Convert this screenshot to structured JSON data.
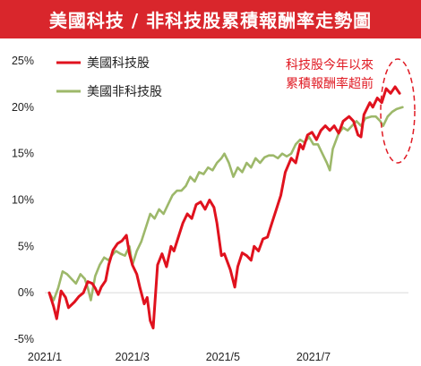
{
  "title": "美國科技 / 非科技股累積報酬率走勢圖",
  "colors": {
    "title_bg": "#d9262c",
    "tech": "#e0121e",
    "nontech": "#9db86a",
    "annotation": "#e01b24"
  },
  "chart_data": {
    "type": "line",
    "title": "美國科技 / 非科技股累積報酬率走勢圖",
    "xlabel": "",
    "ylabel": "",
    "x_range": [
      "2021-01-01",
      "2021-09-03"
    ],
    "ylim": [
      -5,
      25
    ],
    "y_ticks": [
      -5,
      0,
      5,
      10,
      15,
      20,
      25
    ],
    "y_tick_labels": [
      "-5%",
      "0%",
      "5%",
      "10%",
      "15%",
      "20%",
      "25%"
    ],
    "x_ticks": [
      "2021-01-01",
      "2021-03-01",
      "2021-05-01",
      "2021-07-01"
    ],
    "x_tick_labels": [
      "2021/1",
      "2021/3",
      "2021/5",
      "2021/7"
    ],
    "grid": false,
    "legend_position": "top-left",
    "annotation": [
      "科技股今年以來",
      "累積報酬率超前"
    ],
    "series": [
      {
        "name": "美國科技股",
        "color": "#e0121e",
        "points": [
          [
            "2021-01-04",
            0.0
          ],
          [
            "2021-01-07",
            -1.5
          ],
          [
            "2021-01-09",
            -2.8
          ],
          [
            "2021-01-12",
            0.2
          ],
          [
            "2021-01-15",
            -0.5
          ],
          [
            "2021-01-17",
            -1.6
          ],
          [
            "2021-01-21",
            -1.0
          ],
          [
            "2021-01-24",
            -0.4
          ],
          [
            "2021-01-27",
            0.0
          ],
          [
            "2021-01-30",
            1.2
          ],
          [
            "2021-02-02",
            1.0
          ],
          [
            "2021-02-04",
            0.5
          ],
          [
            "2021-02-06",
            -0.2
          ],
          [
            "2021-02-08",
            0.6
          ],
          [
            "2021-02-11",
            1.3
          ],
          [
            "2021-02-13",
            3.0
          ],
          [
            "2021-02-16",
            4.6
          ],
          [
            "2021-02-19",
            5.3
          ],
          [
            "2021-02-22",
            5.6
          ],
          [
            "2021-02-25",
            6.2
          ],
          [
            "2021-02-27",
            4.2
          ],
          [
            "2021-03-01",
            3.0
          ],
          [
            "2021-03-04",
            2.0
          ],
          [
            "2021-03-06",
            0.6
          ],
          [
            "2021-03-09",
            -1.2
          ],
          [
            "2021-03-11",
            -0.5
          ],
          [
            "2021-03-13",
            -3.0
          ],
          [
            "2021-03-15",
            -3.8
          ],
          [
            "2021-03-18",
            3.0
          ],
          [
            "2021-03-21",
            4.2
          ],
          [
            "2021-03-24",
            2.8
          ],
          [
            "2021-03-27",
            5.0
          ],
          [
            "2021-03-29",
            4.5
          ],
          [
            "2021-04-01",
            6.0
          ],
          [
            "2021-04-04",
            7.5
          ],
          [
            "2021-04-07",
            8.5
          ],
          [
            "2021-04-10",
            8.0
          ],
          [
            "2021-04-13",
            9.5
          ],
          [
            "2021-04-16",
            9.8
          ],
          [
            "2021-04-19",
            9.0
          ],
          [
            "2021-04-22",
            10.0
          ],
          [
            "2021-04-25",
            9.2
          ],
          [
            "2021-04-27",
            7.5
          ],
          [
            "2021-04-30",
            4.0
          ],
          [
            "2021-05-02",
            4.2
          ],
          [
            "2021-05-06",
            2.5
          ],
          [
            "2021-05-09",
            0.6
          ],
          [
            "2021-05-11",
            2.8
          ],
          [
            "2021-05-14",
            4.3
          ],
          [
            "2021-05-17",
            4.0
          ],
          [
            "2021-05-20",
            3.5
          ],
          [
            "2021-05-22",
            5.0
          ],
          [
            "2021-05-25",
            4.5
          ],
          [
            "2021-05-28",
            5.8
          ],
          [
            "2021-05-31",
            6.0
          ],
          [
            "2021-06-03",
            7.5
          ],
          [
            "2021-06-06",
            9.0
          ],
          [
            "2021-06-09",
            10.5
          ],
          [
            "2021-06-12",
            13.0
          ],
          [
            "2021-06-16",
            14.5
          ],
          [
            "2021-06-19",
            14.0
          ],
          [
            "2021-06-22",
            16.0
          ],
          [
            "2021-06-24",
            15.5
          ],
          [
            "2021-06-27",
            17.0
          ],
          [
            "2021-06-30",
            17.3
          ],
          [
            "2021-07-03",
            16.5
          ],
          [
            "2021-07-06",
            17.5
          ],
          [
            "2021-07-09",
            18.0
          ],
          [
            "2021-07-12",
            17.5
          ],
          [
            "2021-07-15",
            18.0
          ],
          [
            "2021-07-18",
            17.2
          ],
          [
            "2021-07-21",
            18.5
          ],
          [
            "2021-07-25",
            19.0
          ],
          [
            "2021-07-28",
            18.5
          ],
          [
            "2021-07-31",
            17.0
          ],
          [
            "2021-08-02",
            16.8
          ],
          [
            "2021-08-04",
            19.2
          ],
          [
            "2021-08-08",
            20.5
          ],
          [
            "2021-08-10",
            20.0
          ],
          [
            "2021-08-13",
            21.0
          ],
          [
            "2021-08-16",
            20.5
          ],
          [
            "2021-08-19",
            22.0
          ],
          [
            "2021-08-22",
            21.5
          ],
          [
            "2021-08-25",
            22.2
          ],
          [
            "2021-08-28",
            21.5
          ]
        ]
      },
      {
        "name": "美國非科技股",
        "color": "#9db86a",
        "points": [
          [
            "2021-01-04",
            0.0
          ],
          [
            "2021-01-07",
            -0.8
          ],
          [
            "2021-01-10",
            0.5
          ],
          [
            "2021-01-13",
            2.3
          ],
          [
            "2021-01-16",
            2.0
          ],
          [
            "2021-01-19",
            1.5
          ],
          [
            "2021-01-22",
            1.0
          ],
          [
            "2021-01-25",
            2.0
          ],
          [
            "2021-01-28",
            1.5
          ],
          [
            "2021-01-30",
            0.5
          ],
          [
            "2021-02-01",
            -0.8
          ],
          [
            "2021-02-04",
            1.8
          ],
          [
            "2021-02-07",
            3.0
          ],
          [
            "2021-02-10",
            3.8
          ],
          [
            "2021-02-13",
            3.5
          ],
          [
            "2021-02-15",
            4.0
          ],
          [
            "2021-02-18",
            4.5
          ],
          [
            "2021-02-21",
            4.2
          ],
          [
            "2021-02-24",
            4.0
          ],
          [
            "2021-02-27",
            5.0
          ],
          [
            "2021-03-01",
            3.0
          ],
          [
            "2021-03-04",
            4.5
          ],
          [
            "2021-03-07",
            5.5
          ],
          [
            "2021-03-10",
            7.0
          ],
          [
            "2021-03-13",
            8.5
          ],
          [
            "2021-03-16",
            8.0
          ],
          [
            "2021-03-19",
            9.0
          ],
          [
            "2021-03-22",
            8.5
          ],
          [
            "2021-03-25",
            9.5
          ],
          [
            "2021-03-28",
            10.5
          ],
          [
            "2021-03-31",
            11.0
          ],
          [
            "2021-04-03",
            11.0
          ],
          [
            "2021-04-06",
            11.5
          ],
          [
            "2021-04-09",
            12.5
          ],
          [
            "2021-04-12",
            12.0
          ],
          [
            "2021-04-15",
            13.0
          ],
          [
            "2021-04-18",
            12.8
          ],
          [
            "2021-04-21",
            13.5
          ],
          [
            "2021-04-24",
            13.2
          ],
          [
            "2021-04-27",
            14.0
          ],
          [
            "2021-04-30",
            14.5
          ],
          [
            "2021-05-02",
            15.0
          ],
          [
            "2021-05-05",
            14.0
          ],
          [
            "2021-05-08",
            12.5
          ],
          [
            "2021-05-11",
            13.5
          ],
          [
            "2021-05-14",
            13.0
          ],
          [
            "2021-05-17",
            14.0
          ],
          [
            "2021-05-20",
            13.5
          ],
          [
            "2021-05-23",
            14.5
          ],
          [
            "2021-05-26",
            14.0
          ],
          [
            "2021-05-29",
            14.6
          ],
          [
            "2021-06-01",
            14.8
          ],
          [
            "2021-06-04",
            14.8
          ],
          [
            "2021-06-07",
            14.5
          ],
          [
            "2021-06-10",
            15.0
          ],
          [
            "2021-06-13",
            14.7
          ],
          [
            "2021-06-16",
            15.0
          ],
          [
            "2021-06-19",
            16.0
          ],
          [
            "2021-06-22",
            16.5
          ],
          [
            "2021-06-25",
            16.2
          ],
          [
            "2021-06-28",
            16.8
          ],
          [
            "2021-07-01",
            16.0
          ],
          [
            "2021-07-04",
            16.0
          ],
          [
            "2021-07-07",
            15.0
          ],
          [
            "2021-07-10",
            14.0
          ],
          [
            "2021-07-12",
            13.2
          ],
          [
            "2021-07-14",
            15.5
          ],
          [
            "2021-07-18",
            17.2
          ],
          [
            "2021-07-21",
            17.8
          ],
          [
            "2021-07-24",
            17.5
          ],
          [
            "2021-07-27",
            18.0
          ],
          [
            "2021-07-30",
            18.5
          ],
          [
            "2021-08-02",
            18.0
          ],
          [
            "2021-08-05",
            18.8
          ],
          [
            "2021-08-09",
            19.0
          ],
          [
            "2021-08-12",
            19.0
          ],
          [
            "2021-08-15",
            18.5
          ],
          [
            "2021-08-17",
            18.0
          ],
          [
            "2021-08-20",
            19.0
          ],
          [
            "2021-08-23",
            19.5
          ],
          [
            "2021-08-26",
            19.8
          ],
          [
            "2021-08-30",
            20.0
          ]
        ]
      }
    ]
  }
}
